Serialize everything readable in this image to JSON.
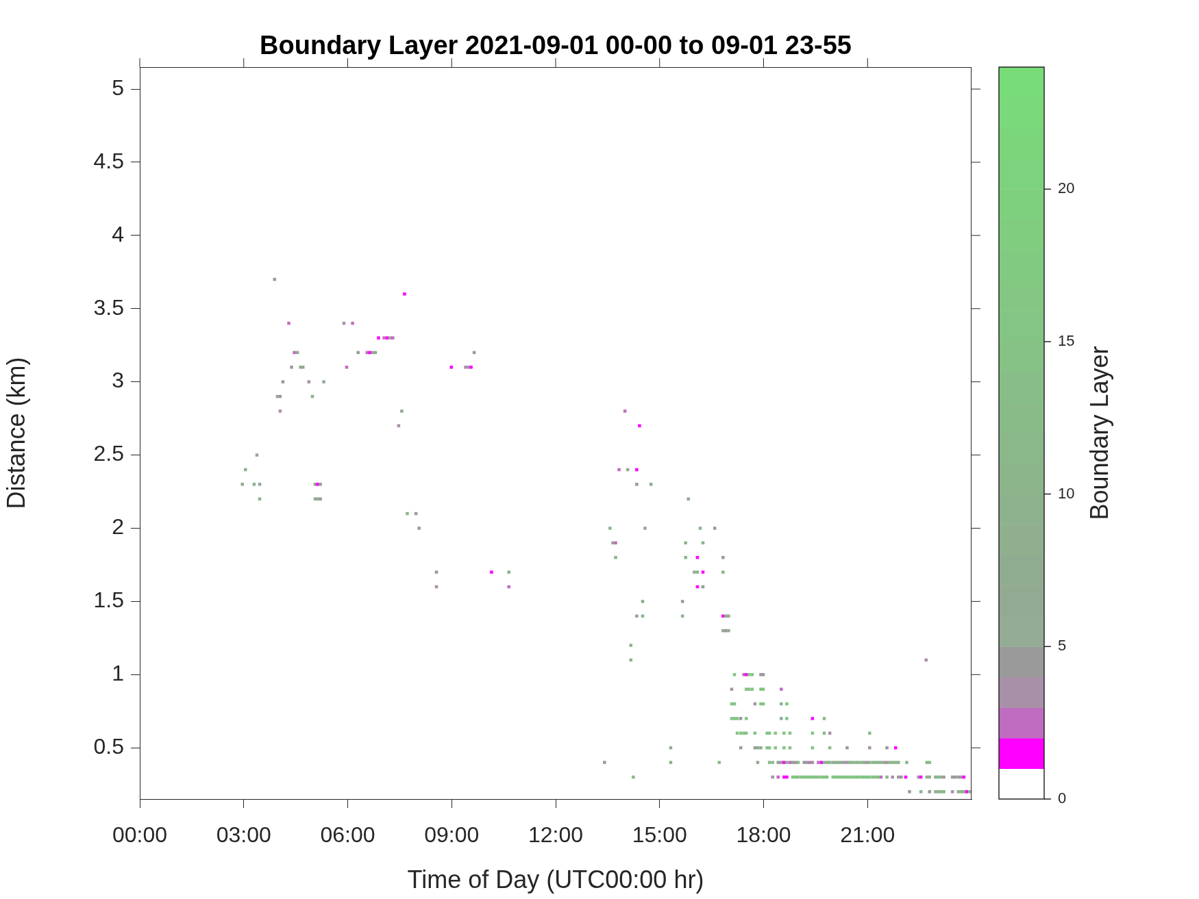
{
  "chart_data": {
    "type": "scatter",
    "title": "Boundary Layer 2021-09-01 00-00 to 09-01 23-55",
    "xlabel": "Time of Day (UTC00:00 hr)",
    "ylabel": "Distance (km)",
    "clabel": "Boundary Layer",
    "xlim": [
      0,
      24
    ],
    "xticks": [
      {
        "value": 0,
        "label": "00:00"
      },
      {
        "value": 3,
        "label": "03:00"
      },
      {
        "value": 6,
        "label": "06:00"
      },
      {
        "value": 9,
        "label": "09:00"
      },
      {
        "value": 12,
        "label": "12:00"
      },
      {
        "value": 15,
        "label": "15:00"
      },
      {
        "value": 18,
        "label": "18:00"
      },
      {
        "value": 21,
        "label": "21:00"
      }
    ],
    "ylim": [
      0.15,
      5.15
    ],
    "yticks": [
      0.5,
      1,
      1.5,
      2,
      2.5,
      3,
      3.5,
      4,
      4.5,
      5
    ],
    "clim": [
      0,
      24
    ],
    "cticks": [
      0,
      5,
      10,
      15,
      20
    ],
    "marker": "square",
    "x": [
      3.89,
      7.64,
      4.3,
      5.89,
      6.14,
      6.89,
      7.05,
      7.14,
      7.23,
      7.3,
      4.46,
      4.55,
      6.3,
      6.56,
      6.64,
      6.72,
      6.8,
      9.65,
      4.38,
      4.64,
      4.71,
      5.97,
      8.99,
      9.4,
      9.48,
      9.56,
      4.13,
      4.88,
      5.31,
      3.97,
      4.05,
      4.98,
      4.05,
      7.56,
      7.47,
      3.38,
      3.05,
      2.96,
      3.3,
      3.46,
      5.06,
      5.13,
      5.21,
      3.46,
      5.06,
      5.13,
      5.21,
      7.72,
      7.97,
      8.06,
      8.56,
      10.15,
      10.65,
      8.56,
      10.65,
      14.0,
      14.42,
      13.83,
      14.08,
      14.34,
      14.34,
      14.75,
      15.83,
      13.57,
      14.58,
      16.17,
      16.59,
      13.65,
      13.73,
      15.75,
      16.25,
      13.73,
      15.75,
      16.09,
      16.83,
      16.0,
      16.09,
      16.25,
      16.83,
      16.09,
      16.25,
      14.51,
      15.66,
      14.34,
      14.51,
      15.66,
      16.83,
      16.91,
      16.99,
      16.83,
      16.91,
      16.99,
      14.17,
      14.17,
      13.41,
      15.32,
      15.32,
      14.24,
      22.69,
      17.16,
      17.43,
      17.5,
      17.58,
      17.67,
      17.92,
      17.99,
      17.08,
      17.5,
      17.58,
      17.67,
      17.92,
      17.99,
      18.51,
      17.08,
      17.16,
      17.75,
      17.92,
      17.99,
      18.51,
      18.67,
      17.08,
      17.16,
      17.24,
      17.34,
      17.5,
      18.51,
      18.67,
      19.41,
      19.75,
      17.24,
      17.34,
      17.43,
      17.5,
      17.75,
      18.1,
      18.17,
      18.34,
      18.59,
      18.76,
      19.41,
      19.75,
      19.91,
      21.06,
      17.34,
      17.75,
      17.83,
      17.92,
      18.1,
      18.17,
      18.34,
      18.59,
      18.76,
      19.41,
      19.91,
      20.41,
      21.06,
      21.56,
      21.81,
      16.72,
      17.83,
      18.17,
      18.26,
      18.42,
      18.51,
      18.59,
      18.67,
      18.76,
      18.84,
      18.92,
      19.0,
      19.17,
      19.25,
      19.34,
      19.41,
      19.58,
      19.67,
      19.75,
      19.83,
      19.91,
      20.0,
      20.08,
      20.16,
      20.24,
      20.33,
      20.41,
      20.49,
      20.57,
      20.66,
      20.73,
      20.82,
      20.9,
      20.98,
      21.06,
      21.15,
      21.23,
      21.31,
      21.39,
      21.48,
      21.56,
      21.64,
      21.72,
      21.81,
      21.89,
      22.13,
      22.71,
      22.79,
      18.26,
      18.42,
      18.59,
      18.67,
      18.84,
      18.92,
      19.0,
      19.09,
      19.17,
      19.25,
      19.34,
      19.41,
      19.5,
      19.58,
      19.67,
      19.75,
      19.83,
      20.0,
      20.08,
      20.16,
      20.24,
      20.33,
      20.41,
      20.49,
      20.57,
      20.66,
      20.73,
      20.82,
      20.9,
      20.98,
      21.06,
      21.15,
      21.23,
      21.31,
      21.39,
      21.56,
      21.72,
      21.89,
      21.97,
      22.1,
      22.47,
      22.54,
      22.71,
      22.79,
      22.96,
      23.04,
      23.12,
      23.2,
      23.45,
      23.53,
      23.62,
      23.7,
      23.78,
      22.21,
      22.54,
      22.79,
      22.96,
      23.04,
      23.12,
      23.2,
      23.45,
      23.62,
      23.7,
      23.78,
      23.86,
      23.95
    ],
    "values": [
      3.7,
      3.6,
      3.4,
      3.4,
      3.4,
      3.3,
      3.3,
      3.3,
      3.3,
      3.3,
      3.2,
      3.2,
      3.2,
      3.2,
      3.2,
      3.2,
      3.2,
      3.2,
      3.1,
      3.1,
      3.1,
      3.1,
      3.1,
      3.1,
      3.1,
      3.1,
      3.0,
      3.0,
      3.0,
      2.9,
      2.9,
      2.9,
      2.8,
      2.8,
      2.7,
      2.5,
      2.4,
      2.3,
      2.3,
      2.3,
      2.3,
      2.3,
      2.3,
      2.2,
      2.2,
      2.2,
      2.2,
      2.1,
      2.1,
      2.0,
      1.7,
      1.7,
      1.7,
      1.6,
      1.6,
      2.8,
      2.7,
      2.4,
      2.4,
      2.4,
      2.3,
      2.3,
      2.2,
      2.0,
      2.0,
      2.0,
      2.0,
      1.9,
      1.9,
      1.9,
      1.9,
      1.8,
      1.8,
      1.8,
      1.8,
      1.7,
      1.7,
      1.7,
      1.7,
      1.6,
      1.6,
      1.5,
      1.5,
      1.4,
      1.4,
      1.4,
      1.4,
      1.4,
      1.4,
      1.3,
      1.3,
      1.3,
      1.2,
      1.1,
      0.4,
      0.5,
      0.4,
      0.3,
      1.1,
      1.0,
      1.0,
      1.0,
      1.0,
      1.0,
      1.0,
      1.0,
      0.9,
      0.9,
      0.9,
      0.9,
      0.9,
      0.9,
      0.9,
      0.8,
      0.8,
      0.8,
      0.8,
      0.8,
      0.8,
      0.8,
      0.7,
      0.7,
      0.7,
      0.7,
      0.7,
      0.7,
      0.7,
      0.7,
      0.7,
      0.6,
      0.6,
      0.6,
      0.6,
      0.6,
      0.6,
      0.6,
      0.6,
      0.6,
      0.6,
      0.6,
      0.6,
      0.6,
      0.6,
      0.5,
      0.5,
      0.5,
      0.5,
      0.5,
      0.5,
      0.5,
      0.5,
      0.5,
      0.5,
      0.5,
      0.5,
      0.5,
      0.5,
      0.5,
      0.4,
      0.4,
      0.4,
      0.4,
      0.4,
      0.4,
      0.4,
      0.4,
      0.4,
      0.4,
      0.4,
      0.4,
      0.4,
      0.4,
      0.4,
      0.4,
      0.4,
      0.4,
      0.4,
      0.4,
      0.4,
      0.4,
      0.4,
      0.4,
      0.4,
      0.4,
      0.4,
      0.4,
      0.4,
      0.4,
      0.4,
      0.4,
      0.4,
      0.4,
      0.4,
      0.4,
      0.4,
      0.4,
      0.4,
      0.4,
      0.4,
      0.4,
      0.4,
      0.4,
      0.4,
      0.4,
      0.4,
      0.4,
      0.3,
      0.3,
      0.3,
      0.3,
      0.3,
      0.3,
      0.3,
      0.3,
      0.3,
      0.3,
      0.3,
      0.3,
      0.3,
      0.3,
      0.3,
      0.3,
      0.3,
      0.3,
      0.3,
      0.3,
      0.3,
      0.3,
      0.3,
      0.3,
      0.3,
      0.3,
      0.3,
      0.3,
      0.3,
      0.3,
      0.3,
      0.3,
      0.3,
      0.3,
      0.3,
      0.3,
      0.3,
      0.3,
      0.3,
      0.3,
      0.3,
      0.3,
      0.3,
      0.3,
      0.3,
      0.3,
      0.3,
      0.3,
      0.3,
      0.3,
      0.3,
      0.3,
      0.3,
      0.2,
      0.2,
      0.2,
      0.2,
      0.2,
      0.2,
      0.2,
      0.2,
      0.2,
      0.2,
      0.2,
      0.2,
      0.2
    ],
    "cvalues": [
      3,
      1,
      2,
      3,
      2,
      1,
      2,
      1,
      6,
      2,
      2,
      6,
      4,
      2,
      1,
      6,
      6,
      3,
      4,
      6,
      6,
      2,
      1,
      3,
      3,
      1,
      4,
      3,
      6,
      8,
      3,
      8,
      3,
      6,
      3,
      6,
      10,
      5,
      10,
      6,
      6,
      1,
      3,
      10,
      8,
      8,
      3,
      10,
      4,
      3,
      4,
      1,
      7,
      3,
      2,
      2,
      1,
      2,
      7,
      1,
      4,
      7,
      7,
      10,
      6,
      10,
      4,
      6,
      2,
      9,
      8,
      10,
      9,
      1,
      4,
      8,
      8,
      1,
      10,
      1,
      4,
      6,
      4,
      6,
      10,
      10,
      1,
      6,
      8,
      6,
      4,
      8,
      10,
      10,
      4,
      5,
      10,
      10,
      3,
      15,
      2,
      1,
      15,
      15,
      4,
      4,
      3,
      15,
      15,
      15,
      15,
      15,
      2,
      15,
      15,
      4,
      15,
      15,
      10,
      15,
      15,
      15,
      15,
      4,
      15,
      5,
      15,
      1,
      12,
      15,
      15,
      15,
      15,
      15,
      15,
      15,
      15,
      15,
      15,
      15,
      12,
      3,
      12,
      4,
      6,
      6,
      6,
      15,
      15,
      15,
      15,
      15,
      15,
      12,
      4,
      3,
      4,
      1,
      12,
      6,
      10,
      12,
      4,
      3,
      1,
      6,
      2,
      4,
      4,
      10,
      4,
      4,
      2,
      4,
      2,
      1,
      10,
      10,
      10,
      10,
      6,
      10,
      6,
      4,
      3,
      10,
      10,
      10,
      10,
      10,
      10,
      3,
      10,
      10,
      10,
      10,
      10,
      4,
      4,
      10,
      10,
      10,
      10,
      10,
      12,
      12,
      4,
      2,
      1,
      1,
      15,
      15,
      15,
      15,
      15,
      15,
      15,
      15,
      15,
      15,
      15,
      15,
      15,
      15,
      15,
      15,
      15,
      15,
      15,
      15,
      15,
      15,
      15,
      15,
      15,
      15,
      15,
      15,
      15,
      15,
      2,
      10,
      3,
      4,
      4,
      1,
      4,
      1,
      10,
      10,
      10,
      10,
      10,
      3,
      4,
      4,
      4,
      3,
      1,
      4,
      10,
      4,
      10,
      10,
      10,
      10,
      3,
      10,
      10,
      10,
      1,
      10
    ]
  }
}
